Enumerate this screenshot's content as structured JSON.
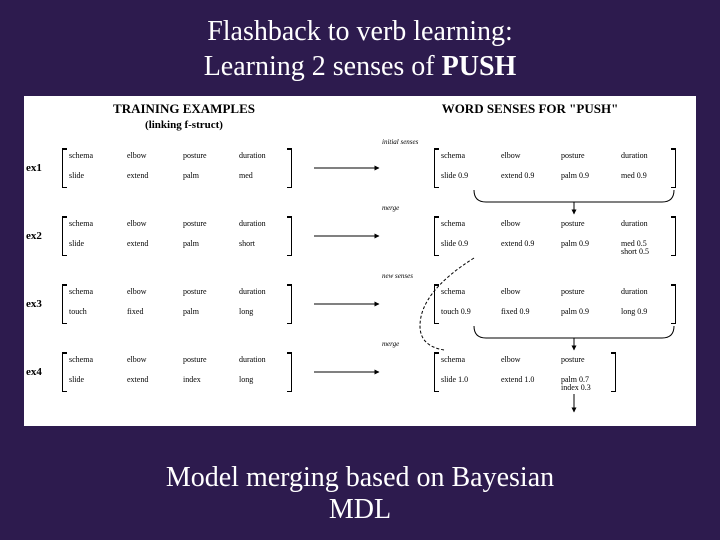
{
  "title_line1": "Flashback to verb learning:",
  "title_line2_a": "Learning 2 senses of ",
  "title_line2_b": "PUSH",
  "left_header": "TRAINING EXAMPLES",
  "left_sub": "(linking f-struct)",
  "right_header": "WORD SENSES FOR \"PUSH\"",
  "ex_labels": [
    "ex1",
    "ex2",
    "ex3",
    "ex4"
  ],
  "step_labels": [
    "initial senses",
    "merge",
    "new senses",
    "merge"
  ],
  "examples": [
    {
      "keys": [
        "schema",
        "elbow",
        "posture",
        "duration"
      ],
      "vals": [
        "slide",
        "extend",
        "palm",
        "med"
      ]
    },
    {
      "keys": [
        "schema",
        "elbow",
        "posture",
        "duration"
      ],
      "vals": [
        "slide",
        "extend",
        "palm",
        "short"
      ]
    },
    {
      "keys": [
        "schema",
        "elbow",
        "posture",
        "duration"
      ],
      "vals": [
        "touch",
        "fixed",
        "palm",
        "long"
      ]
    },
    {
      "keys": [
        "schema",
        "elbow",
        "posture",
        "duration"
      ],
      "vals": [
        "slide",
        "extend",
        "index",
        "long"
      ]
    }
  ],
  "senses": [
    {
      "keys": [
        "schema",
        "elbow",
        "posture",
        "duration"
      ],
      "vals": [
        "slide 0.9",
        "extend 0.9",
        "palm 0.9",
        "med 0.9"
      ]
    },
    {
      "keys": [
        "schema",
        "elbow",
        "posture",
        "duration"
      ],
      "vals": [
        "slide 0.9",
        "extend 0.9",
        "palm 0.9",
        "med 0.5\nshort 0.5"
      ]
    },
    {
      "keys": [
        "schema",
        "elbow",
        "posture",
        "duration"
      ],
      "vals": [
        "touch 0.9",
        "fixed 0.9",
        "palm 0.9",
        "long 0.9"
      ]
    },
    {
      "keys": [
        "schema",
        "elbow",
        "posture"
      ],
      "vals": [
        "slide 1.0",
        "extend 1.0",
        "palm 0.7\nindex 0.3"
      ]
    }
  ],
  "footer_line1": "Model merging based on Bayesian",
  "footer_line2": "MDL",
  "colors": {
    "bg": "#2d1b4e",
    "panel": "#ffffff",
    "ink": "#000000",
    "text": "#ffffff"
  }
}
